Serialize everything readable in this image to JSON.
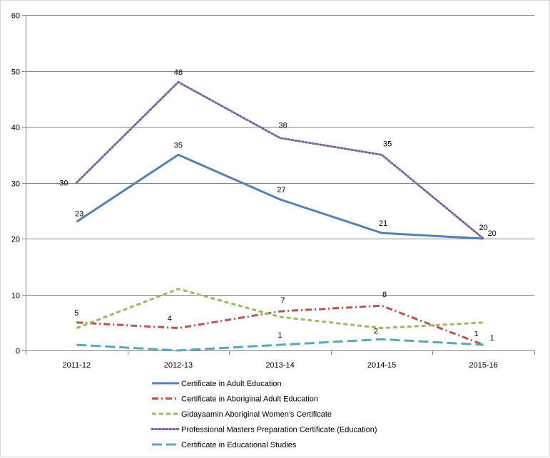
{
  "chart_data": {
    "type": "line",
    "title": "",
    "xlabel": "",
    "ylabel": "",
    "categories": [
      "2011-12",
      "2012-13",
      "2013-14",
      "2014-15",
      "2015-16"
    ],
    "ylim": [
      0,
      60
    ],
    "y_ticks": [
      0,
      10,
      20,
      30,
      40,
      50,
      60
    ],
    "grid": "horizontal",
    "legend_position": "bottom",
    "series": [
      {
        "name": "Certificate in Adult Education",
        "values": [
          23,
          35,
          27,
          21,
          20
        ],
        "color": "#4f81bd",
        "line_style": "solid",
        "labels_shown": true
      },
      {
        "name": "Certificate in Aboriginal Adult Education",
        "values": [
          5,
          4,
          7,
          8,
          1
        ],
        "color": "#c0504d",
        "line_style": "dash-dot",
        "labels_shown": true
      },
      {
        "name": "Gidayaamin Aboriginal Women's Certificate",
        "values": [
          4,
          11,
          6,
          4,
          5
        ],
        "color": "#9bbb59",
        "line_style": "dashed",
        "labels_shown": false
      },
      {
        "name": "Professional Masters Preparation Certificate (Education)",
        "values": [
          30,
          48,
          38,
          35,
          20
        ],
        "color": "#8064a2",
        "line_style": "dotted",
        "labels_shown": true
      },
      {
        "name": "Certificate in Educational Studies",
        "values": [
          1,
          0,
          1,
          2,
          1
        ],
        "color": "#4bacc6",
        "line_style": "long-dash",
        "labels_shown": true,
        "label_indices": [
          2,
          3,
          4
        ]
      }
    ]
  }
}
